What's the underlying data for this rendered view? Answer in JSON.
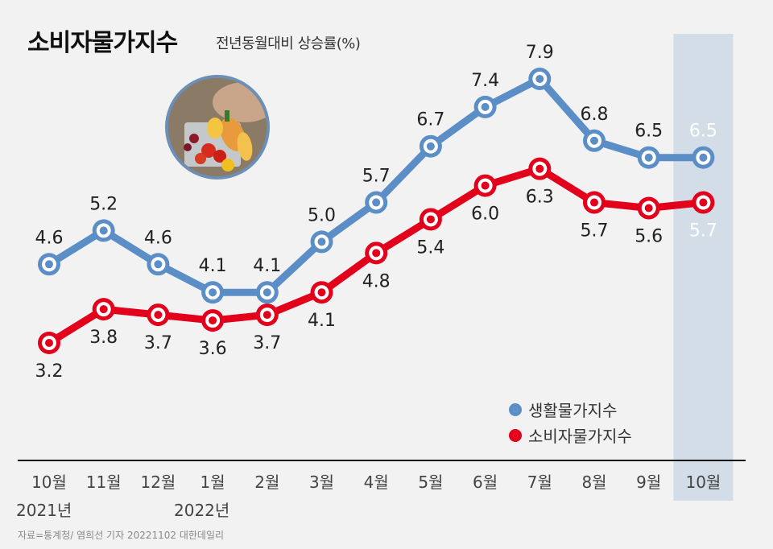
{
  "title": "소비자물가지수",
  "subtitle": "전년동월대비 상승률(%)",
  "colors": {
    "living_index": "#5b8ec6",
    "consumer_index": "#e3001b",
    "highlight_band": "#d3dde8",
    "highlight_text": "#ffffff",
    "axis": "#111111"
  },
  "chart_data": {
    "type": "line",
    "categories": [
      "10월",
      "11월",
      "12월",
      "1월",
      "2월",
      "3월",
      "4월",
      "5월",
      "6월",
      "7월",
      "8월",
      "9월",
      "10월"
    ],
    "year_labels": [
      {
        "label": "2021년",
        "category_index": 0
      },
      {
        "label": "2022년",
        "category_index": 3
      }
    ],
    "series": [
      {
        "name": "생활물가지수",
        "values": [
          4.6,
          5.2,
          4.6,
          4.1,
          4.1,
          5.0,
          5.7,
          6.7,
          7.4,
          7.9,
          6.8,
          6.5,
          6.5
        ]
      },
      {
        "name": "소비자물가지수",
        "values": [
          3.2,
          3.8,
          3.7,
          3.6,
          3.7,
          4.1,
          4.8,
          5.4,
          6.0,
          6.3,
          5.7,
          5.6,
          5.7
        ]
      }
    ],
    "value_labels": [
      [
        "4.6",
        "5.2",
        "4.6",
        "4.1",
        "4.1",
        "5.0",
        "5.7",
        "6.7",
        "7.4",
        "7.9",
        "6.8",
        "6.5",
        "6.5"
      ],
      [
        "3.2",
        "3.8",
        "3.7",
        "3.6",
        "3.7",
        "4.1",
        "4.8",
        "5.4",
        "6.0",
        "6.3",
        "5.7",
        "5.6",
        "5.7"
      ]
    ],
    "highlighted_category_index": 12,
    "ylim": [
      2.2,
      8.4
    ],
    "grid": false,
    "legend_position": "bottom-right",
    "title": "소비자물가지수",
    "subtitle": "전년동월대비 상승률(%)",
    "xlabel": "",
    "ylabel": ""
  },
  "legend": [
    {
      "label": "생활물가지수",
      "color": "#5b8ec6"
    },
    {
      "label": "소비자물가지수",
      "color": "#e3001b"
    }
  ],
  "source": "자료=통계청/ 염희선 기자 20221102 대한데일리"
}
